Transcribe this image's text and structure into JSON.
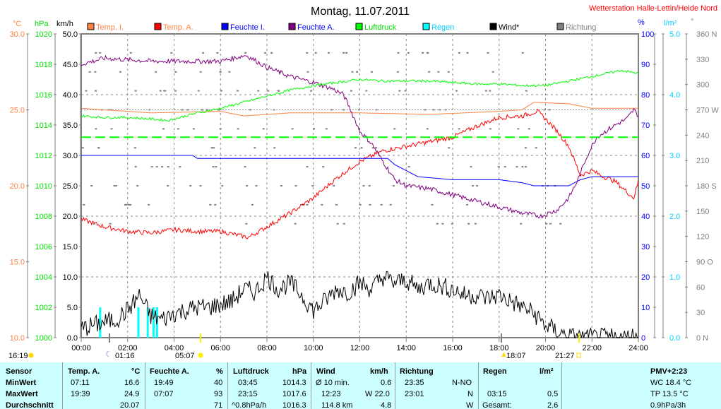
{
  "title": "Montag, 11.07.2011",
  "station": "Wetterstation Halle-Lettin/Heide Nord",
  "units": {
    "c": "°C",
    "hpa": "hPa",
    "kmh": "km/h",
    "pct": "%",
    "lm2": "l/m²",
    "deg": "°"
  },
  "legend": [
    {
      "label": "Temp. I.",
      "color": "#ff8040",
      "text": "#ff8040"
    },
    {
      "label": "Temp. A.",
      "color": "#ff0000",
      "text": "#ff8040"
    },
    {
      "label": "Feuchte I.",
      "color": "#0000ff",
      "text": "#0000ff"
    },
    {
      "label": "Feuchte A.",
      "color": "#800080",
      "text": "#0000ff"
    },
    {
      "label": "Luftdruck",
      "color": "#00ff00",
      "text": "#00dd00"
    },
    {
      "label": "Regen",
      "color": "#00ffff",
      "text": "#00d0ff"
    },
    {
      "label": "Wind*",
      "color": "#000000",
      "text": "#000000"
    },
    {
      "label": "Richtung",
      "color": "#808080",
      "text": "#808080"
    }
  ],
  "chart_data": {
    "type": "line",
    "title": "Montag, 11.07.2011",
    "xlabel": "time (h)",
    "xlim": [
      0,
      24
    ],
    "x_ticks": [
      "00:00",
      "02:00",
      "04:00",
      "06:00",
      "08:00",
      "10:00",
      "12:00",
      "14:00",
      "16:00",
      "18:00",
      "20:00",
      "22:00",
      "24:00"
    ],
    "axes": {
      "temp": {
        "range": [
          10,
          30
        ],
        "ticks": [
          "30.0",
          "25.0",
          "20.0",
          "15.0",
          "10.0"
        ]
      },
      "pressure": {
        "range": [
          1000,
          1020
        ],
        "ticks": [
          "1020",
          "1018",
          "1016",
          "1014",
          "1012",
          "1010",
          "1008",
          "1006",
          "1004",
          "1002",
          "1000"
        ]
      },
      "wind": {
        "range": [
          0,
          50
        ],
        "ticks": [
          "50.0",
          "45.0",
          "40.0",
          "35.0",
          "30.0",
          "25.0",
          "20.0",
          "15.0",
          "10.0",
          "5.0",
          "0.0"
        ]
      },
      "humidity": {
        "range": [
          0,
          100
        ],
        "ticks": [
          "100",
          "90",
          "80",
          "70",
          "60",
          "50",
          "40",
          "30",
          "20",
          "10",
          "0"
        ]
      },
      "rain": {
        "range": [
          0,
          5
        ],
        "ticks": [
          "5.0",
          "4.0",
          "3.0",
          "2.0",
          "1.0",
          "0.0"
        ]
      },
      "direction": {
        "range": [
          0,
          360
        ],
        "ticks": [
          "360 N",
          "330",
          "300",
          "270 W",
          "240",
          "210",
          "180 S",
          "150",
          "120",
          "90 O",
          "60",
          "30",
          "0 N"
        ]
      }
    },
    "series": [
      {
        "name": "Temp. I.",
        "axis": "temp",
        "x": [
          0,
          3,
          6,
          7,
          9,
          12,
          15,
          18,
          19,
          19.5,
          21,
          22,
          23,
          24
        ],
        "y": [
          25.1,
          24.8,
          24.9,
          24.6,
          24.8,
          24.8,
          24.7,
          24.9,
          25,
          25.5,
          25.4,
          25.1,
          25.1,
          25.1
        ]
      },
      {
        "name": "Temp. A.",
        "axis": "temp",
        "x": [
          0,
          1,
          2,
          3,
          4,
          5,
          6,
          7.2,
          8,
          9,
          10,
          11,
          12,
          13,
          14,
          15,
          16,
          17,
          18,
          19,
          19.65,
          20,
          20.5,
          21,
          21.5,
          22,
          22.5,
          23,
          23.5,
          23.8,
          24
        ],
        "y": [
          17.8,
          17.3,
          17.0,
          16.9,
          17.1,
          17.0,
          17.0,
          16.6,
          17.3,
          18.2,
          19.2,
          20.5,
          21.6,
          22.3,
          22.6,
          22.9,
          23.2,
          23.9,
          24.5,
          24.6,
          24.9,
          24.4,
          23.6,
          22.6,
          20.7,
          21.0,
          20.6,
          20.3,
          19.6,
          19.2,
          20.3
        ]
      },
      {
        "name": "Feuchte I.",
        "axis": "humidity",
        "x": [
          0,
          4.8,
          5,
          13.2,
          13.5,
          14,
          14.5,
          16,
          18,
          19,
          19.5,
          21,
          21.5,
          22,
          24
        ],
        "y": [
          60,
          60,
          59,
          59,
          57,
          55,
          53,
          52,
          52,
          51,
          50,
          50,
          52,
          53,
          53
        ]
      },
      {
        "name": "Feuchte A.",
        "axis": "humidity",
        "x": [
          0,
          0.5,
          1,
          3,
          4,
          5,
          6,
          7.1,
          8,
          9,
          10,
          10.8,
          11.3,
          11.6,
          12,
          12.5,
          13,
          13.5,
          14,
          15,
          16,
          17,
          18,
          19,
          19.8,
          20.5,
          21,
          21.4,
          21.8,
          22.2,
          22.6,
          23,
          23.5,
          23.8,
          24
        ],
        "y": [
          90,
          91,
          92,
          91,
          91,
          91,
          91,
          93,
          89,
          86,
          84,
          82,
          80,
          75,
          68,
          64,
          58,
          52,
          50,
          49,
          47,
          45,
          43,
          41,
          40,
          42,
          46,
          52,
          60,
          66,
          68,
          70,
          72,
          75,
          73
        ]
      },
      {
        "name": "Luftdruck",
        "axis": "pressure",
        "x": [
          0,
          1,
          2,
          3,
          3.75,
          4.5,
          5,
          6,
          7,
          8,
          9,
          10,
          11,
          12,
          13,
          14,
          15,
          16,
          17,
          18,
          19,
          20,
          21,
          22,
          23.25,
          24
        ],
        "y": [
          1014.6,
          1014.5,
          1014.5,
          1014.4,
          1014.3,
          1014.6,
          1014.8,
          1015.1,
          1015.5,
          1015.9,
          1016.3,
          1016.6,
          1016.8,
          1017.0,
          1016.9,
          1016.9,
          1016.9,
          1016.8,
          1016.7,
          1016.7,
          1016.6,
          1016.6,
          1016.9,
          1017.2,
          1017.6,
          1017.4
        ]
      },
      {
        "name": "Luftdruck-Referenz",
        "axis": "pressure",
        "x": [
          0,
          24
        ],
        "y": [
          1013.2,
          1013.2
        ],
        "dashed": true
      },
      {
        "name": "Wind*",
        "axis": "wind",
        "x": [
          0,
          0.5,
          1,
          1.5,
          2,
          2.5,
          3,
          3.5,
          4,
          4.5,
          5,
          5.5,
          6,
          6.5,
          7,
          7.5,
          8,
          8.5,
          9,
          9.5,
          10,
          10.5,
          11,
          11.5,
          12,
          12.5,
          13,
          13.5,
          14,
          14.5,
          15,
          15.5,
          16,
          16.5,
          17,
          17.5,
          18,
          18.5,
          19,
          19.5,
          20,
          20.5,
          21,
          21.5,
          22,
          22.5,
          23,
          23.5,
          24
        ],
        "y": [
          1.5,
          2,
          2.5,
          3,
          4.5,
          7,
          3.5,
          3,
          4,
          4.5,
          5,
          5,
          5.5,
          6,
          8,
          7.5,
          10,
          8,
          9,
          7,
          4.5,
          6,
          8,
          7.5,
          9,
          8,
          10,
          9,
          9.5,
          8,
          9,
          8.5,
          8,
          7,
          7,
          6.5,
          7,
          6,
          5,
          4,
          2,
          1,
          0.2,
          0,
          0,
          0,
          0,
          0,
          0.5
        ]
      }
    ],
    "rain_bars": {
      "axis": "rain",
      "x": [
        0.8,
        2.45,
        2.85,
        3.1,
        3.25
      ],
      "y": [
        0.5,
        0.5,
        0.5,
        0.5,
        0.5
      ]
    },
    "direction_points": "scattered grey dots",
    "reference_hline_temp": 25.0
  },
  "astro": [
    {
      "label": "16:19",
      "icon": "moon-icon"
    },
    {
      "label": "01:16",
      "icon": "moonset-icon"
    },
    {
      "label": "05:07",
      "icon": "sunrise-icon"
    },
    {
      "label": "18:07",
      "icon": "moonrise-icon"
    },
    {
      "label": "21:27",
      "icon": "sunset-icon"
    }
  ],
  "table": {
    "sensor": [
      "Sensor",
      "MinWert",
      "MaxWert",
      "Durchschnitt"
    ],
    "temp": {
      "h": "Temp. A.",
      "u": "°C",
      "min_t": "07:11",
      "min": "16.6",
      "max_t": "19:39",
      "max": "24.9",
      "avg": "20.07"
    },
    "hum": {
      "h": "Feuchte A.",
      "u": "%",
      "min_t": "19:49",
      "min": "40",
      "max_t": "07:07",
      "max": "93",
      "avg": "71"
    },
    "press": {
      "h": "Luftdruck",
      "u": "hPa",
      "min_t": "03:45",
      "min": "1014.3",
      "max_t": "23:15",
      "max": "1017.6",
      "trend": "^0.8hPa/h",
      "avg": "1016.3"
    },
    "wind": {
      "h": "Wind",
      "u": "km/h",
      "r1l": "Ø 10 min.",
      "r1v": "0.6",
      "r2l": "12:23",
      "r2v": "W 22.0",
      "r3l": "114.8 km",
      "r3v": "4.8"
    },
    "dir": {
      "h": "Richtung",
      "r1l": "23:35",
      "r1v": "N-NO",
      "r2l": "23:01",
      "r2v": "N",
      "r3v": "W"
    },
    "rain": {
      "h": "Regen",
      "u": "l/m²",
      "r2l": "03:15",
      "r2v": "0.5",
      "r3l": "Gesamt:",
      "r3v": "2.6"
    },
    "pmv": {
      "h": "PMV+2:23",
      "r1": "WC 18.4 °C",
      "r2": "TP 13.5 °C",
      "r3": "0.9hPa/3h"
    }
  }
}
